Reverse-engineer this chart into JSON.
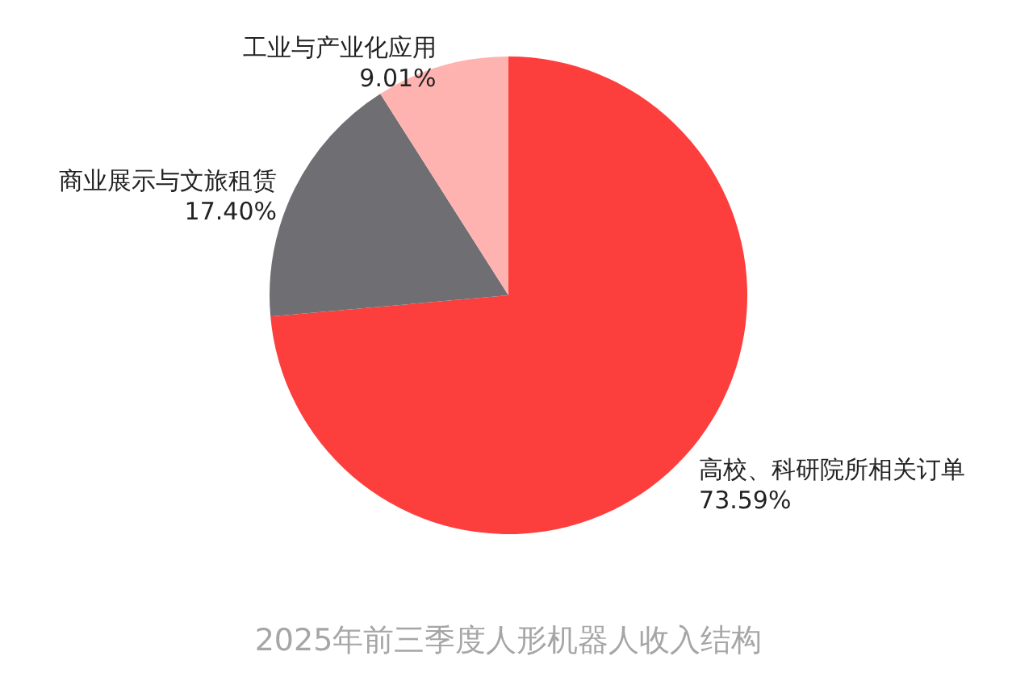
{
  "chart_data": {
    "type": "pie",
    "title": "2025年前三季度人形机器人收入结构",
    "categories": [
      "高校、科研院所相关订单",
      "商业展示与文旅租赁",
      "工业与产业化应用"
    ],
    "values": [
      73.59,
      17.4,
      9.01
    ],
    "colors": [
      "#fc3f3d",
      "#6f6f73",
      "#ffb3b0"
    ],
    "value_labels": [
      "73.59%",
      "17.40%",
      "9.01%"
    ]
  }
}
